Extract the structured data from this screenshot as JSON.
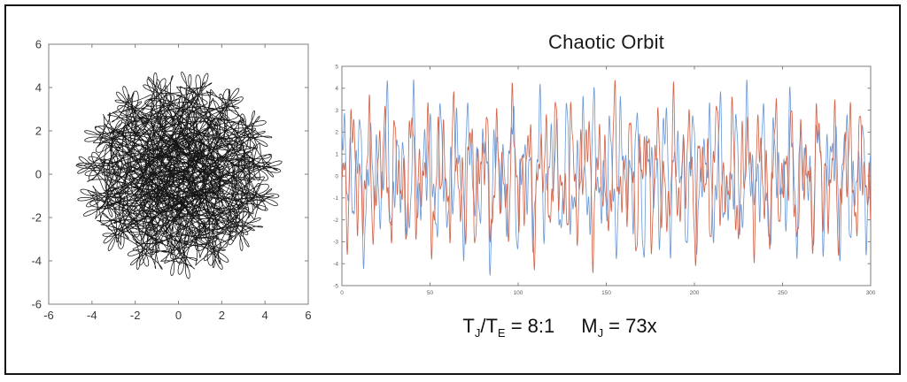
{
  "figure": {
    "background": "#ffffff",
    "border_color": "#141414",
    "axis_color": "#7f7f7f",
    "tick_label_color_left": "#3a3a3a",
    "tick_label_color_right": "#606060"
  },
  "caption": {
    "plain": "TJ/TE = 8:1    MJ = 73x",
    "parts": [
      {
        "text": "T"
      },
      {
        "text": "J"
      },
      {
        "text": "/T"
      },
      {
        "text": "E"
      },
      {
        "text": " = 8:1"
      },
      {
        "text": "M"
      },
      {
        "text": "J"
      },
      {
        "text": " = 73x"
      }
    ]
  },
  "chart_data": [
    {
      "type": "line",
      "title": "",
      "xlabel": "",
      "ylabel": "",
      "xlim": [
        -6,
        6
      ],
      "ylim": [
        -6,
        6
      ],
      "xticks": [
        -6,
        -4,
        -2,
        0,
        2,
        4,
        6
      ],
      "yticks": [
        -6,
        -4,
        -2,
        0,
        2,
        4,
        6
      ],
      "grid": false,
      "legend": false,
      "description": "Chaotic planetary orbit trajectory traced in the x-y plane: hundreds of overlapping black epicyclic loops forming a dense tangle, maximum radius about 4.8, densest near the center",
      "line_color": "#151515",
      "stroke_width": 0.75,
      "orbit": {
        "t_max": 240,
        "dt": 0.025,
        "terms": [
          {
            "a": 2.25,
            "w": 1.0,
            "p": 0.0
          },
          {
            "a": 1.45,
            "w": -2.41,
            "p": 0.8
          },
          {
            "a": 0.75,
            "w": 6.47,
            "p": 2.1
          },
          {
            "a": 0.4,
            "w": -13.9,
            "p": 0.5
          }
        ]
      }
    },
    {
      "type": "line",
      "title": "Chaotic Orbit",
      "xlabel": "",
      "ylabel": "",
      "xlim": [
        0,
        300
      ],
      "ylim": [
        -5,
        5
      ],
      "xticks": [
        0,
        50,
        100,
        150,
        200,
        250,
        300
      ],
      "yticks": [
        -5,
        -4,
        -3,
        -2,
        -1,
        0,
        1,
        2,
        3,
        4,
        5
      ],
      "grid": false,
      "legend": false,
      "description": "Two chaotic oscillating time series (coordinate vs time) for two bodies; irregular oscillations with amplitude envelopes varying between about 1 and 4.8, peaks reaching roughly +-4.7",
      "series": [
        {
          "name": "body-1-blue",
          "color": "#6d9bd8",
          "stroke_width": 0.85,
          "t_max": 300,
          "dt": 0.12,
          "terms": [
            {
              "a": 1.55,
              "w": 0.795,
              "p": 0.5
            },
            {
              "a": 1.35,
              "w": 1.232,
              "p": 1.7
            },
            {
              "a": 1.1,
              "w": 2.094,
              "p": 4.2
            },
            {
              "a": 0.55,
              "w": 3.855,
              "p": 2.0
            },
            {
              "a": 0.35,
              "w": 0.273,
              "p": 1.1
            }
          ]
        },
        {
          "name": "body-2-orange",
          "color": "#d4654a",
          "stroke_width": 0.85,
          "t_max": 300,
          "dt": 0.12,
          "terms": [
            {
              "a": 1.5,
              "w": 0.7617,
              "p": 2.9
            },
            {
              "a": 1.4,
              "w": 1.309,
              "p": 0.3
            },
            {
              "a": 1.05,
              "w": 2.26,
              "p": 3.6
            },
            {
              "a": 0.5,
              "w": 4.189,
              "p": 5.1
            },
            {
              "a": 0.35,
              "w": 0.3307,
              "p": 0.2
            }
          ]
        }
      ]
    }
  ]
}
